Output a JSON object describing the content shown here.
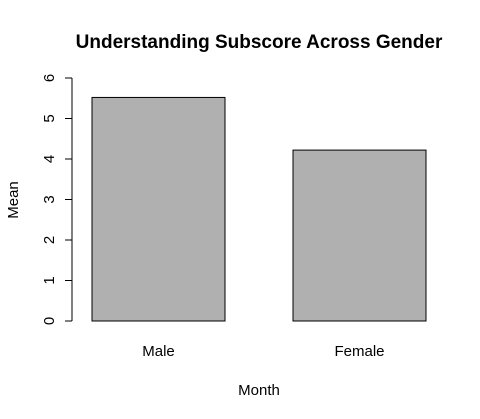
{
  "chart_data": {
    "type": "bar",
    "title": "Understanding Subscore Across Gender",
    "xlabel": "Month",
    "ylabel": "Mean",
    "categories": [
      "Male",
      "Female"
    ],
    "values": [
      5.52,
      4.22
    ],
    "ylim": [
      0,
      6
    ],
    "yticks": [
      "0",
      "1",
      "2",
      "3",
      "4",
      "5",
      "6"
    ],
    "grid": false,
    "bar_color": "#b0b0b0",
    "border_color": "#000000"
  }
}
